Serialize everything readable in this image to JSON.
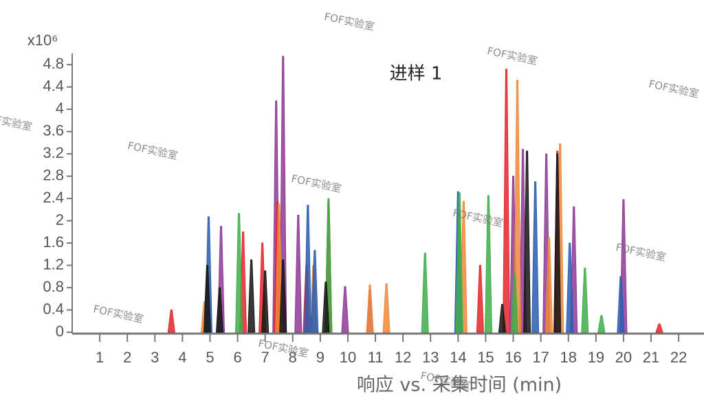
{
  "chart_data": {
    "type": "chromatogram",
    "title": "进样 1",
    "y_unit": "x10⁶",
    "x_label": "响应 vs. 采集时间 (min)",
    "watermark": "FOF实验室",
    "xlim": [
      0,
      22.92
    ],
    "xticks": [
      1,
      2,
      3,
      4,
      5,
      6,
      7,
      8,
      9,
      10,
      11,
      12,
      13,
      14,
      15,
      16,
      17,
      18,
      19,
      20,
      21,
      22
    ],
    "ylim": [
      0,
      5
    ],
    "yticks": [
      0,
      0.4,
      0.8,
      1.2,
      1.6,
      2,
      2.4,
      2.8,
      3.2,
      3.6,
      4,
      4.4,
      4.8
    ],
    "series": [
      {
        "color": "#8e3a96",
        "x": [
          5.4,
          7.4,
          7.65,
          8.2,
          9.9,
          10.8,
          16.0,
          16.35,
          17.2,
          18.2,
          20.0
        ],
        "values": [
          1.9,
          4.15,
          4.95,
          2.1,
          0.82,
          0.75,
          2.8,
          3.28,
          3.2,
          2.25,
          2.38
        ]
      },
      {
        "color": "#e3262b",
        "x": [
          3.6,
          6.2,
          6.9,
          7.45,
          8.5,
          9.3,
          14.8,
          15.75,
          17.6,
          21.3
        ],
        "values": [
          0.4,
          1.8,
          1.6,
          2.35,
          1.2,
          2.35,
          1.2,
          4.72,
          3.25,
          0.15
        ]
      },
      {
        "color": "#f0883a",
        "x": [
          4.8,
          7.5,
          8.75,
          10.8,
          11.4,
          14.2,
          16.15,
          17.3,
          17.7
        ],
        "values": [
          0.55,
          2.3,
          1.2,
          0.85,
          0.87,
          2.35,
          4.52,
          1.7,
          3.38
        ]
      },
      {
        "color": "#2a5db0",
        "x": [
          4.95,
          8.55,
          8.8,
          14.0,
          16.8,
          18.05,
          19.9
        ],
        "values": [
          2.07,
          2.28,
          1.47,
          2.52,
          2.7,
          1.6,
          1.0
        ]
      },
      {
        "color": "#3fae49",
        "x": [
          6.05,
          9.3,
          12.8,
          14.05,
          15.1,
          16.05,
          18.6,
          19.2
        ],
        "values": [
          2.13,
          2.4,
          1.42,
          2.5,
          2.45,
          1.05,
          1.15,
          0.3
        ]
      },
      {
        "color": "#151515",
        "x": [
          4.9,
          5.35,
          6.5,
          7.0,
          7.65,
          9.2,
          15.6,
          16.5,
          17.6
        ],
        "values": [
          1.2,
          0.8,
          1.3,
          1.1,
          1.3,
          0.9,
          0.5,
          3.25,
          3.2
        ]
      }
    ]
  }
}
